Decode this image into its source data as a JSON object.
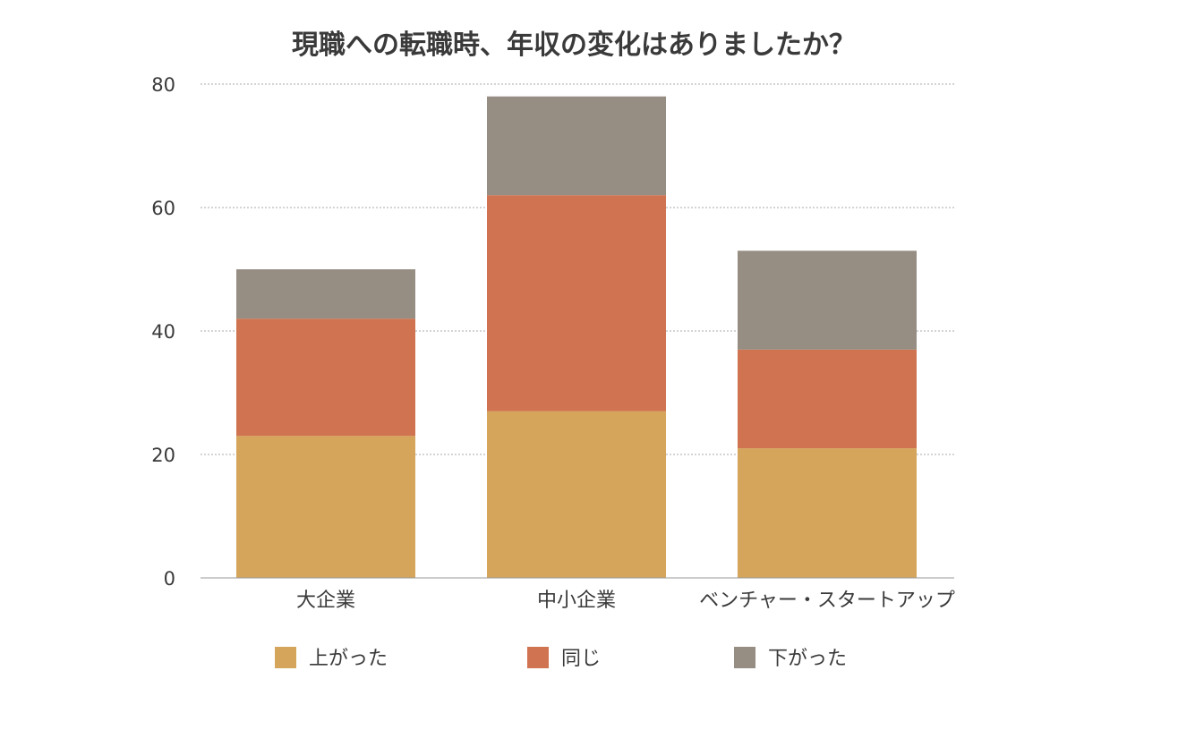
{
  "chart_data": {
    "type": "bar",
    "stacked": true,
    "title": "現職への転職時、年収の変化はありましたか？",
    "xlabel": "",
    "ylabel": "",
    "categories": [
      "大企業",
      "中小企業",
      "ベンチャー・スタートアップ"
    ],
    "series": [
      {
        "name": "上がった",
        "values": [
          23,
          27,
          21
        ],
        "color": "#D4A55A"
      },
      {
        "name": "同じ",
        "values": [
          19,
          35,
          16
        ],
        "color": "#D07350"
      },
      {
        "name": "下がった",
        "values": [
          8,
          16,
          16
        ],
        "color": "#968D83"
      }
    ],
    "ylim": [
      0,
      80
    ],
    "yticks": [
      0,
      20,
      40,
      60,
      80
    ],
    "grid": true,
    "legend_position": "bottom"
  }
}
